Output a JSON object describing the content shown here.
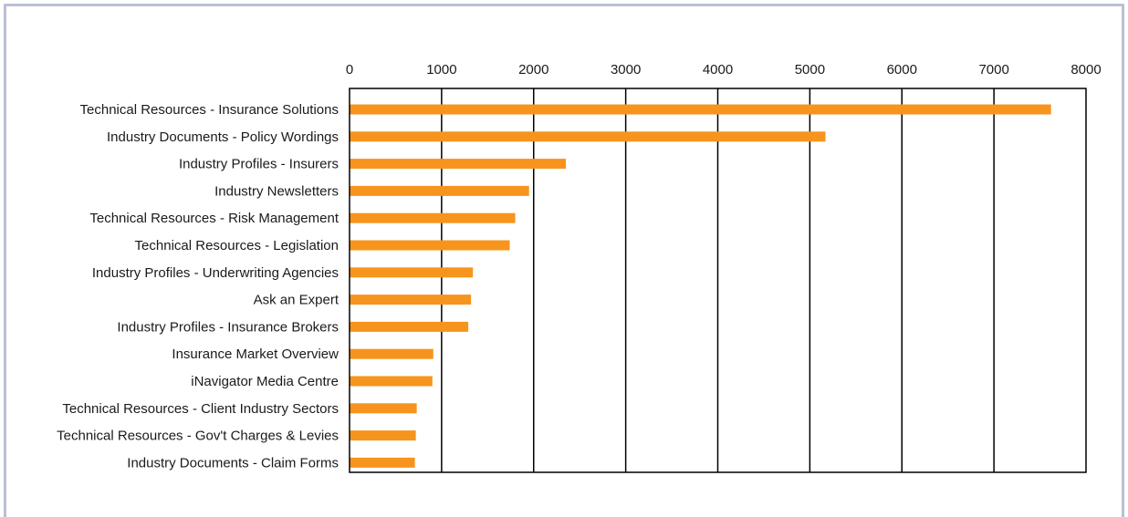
{
  "colors": {
    "bar": "#f7941d",
    "frame": "#b9c1d3",
    "axis": "#000000",
    "text": "#1a1a1a"
  },
  "chart_data": {
    "type": "bar",
    "orientation": "horizontal",
    "title": "",
    "xlabel": "",
    "ylabel": "",
    "xlim": [
      0,
      8000
    ],
    "x_axis_position": "top",
    "xticks": [
      0,
      1000,
      2000,
      3000,
      4000,
      5000,
      6000,
      7000,
      8000
    ],
    "grid": "vertical",
    "legend": "none",
    "categories": [
      "Technical Resources - Insurance Solutions",
      "Industry Documents - Policy Wordings",
      "Industry Profiles - Insurers",
      "Industry Newsletters",
      "Technical Resources - Risk Management",
      "Technical Resources - Legislation",
      "Industry Profiles - Underwriting Agencies",
      "Ask an Expert",
      "Industry Profiles - Insurance Brokers",
      "Insurance Market Overview",
      "iNavigator Media Centre",
      "Technical Resources - Client Industry Sectors",
      "Technical Resources - Gov't Charges & Levies",
      "Industry Documents - Claim Forms"
    ],
    "values": [
      7620,
      5170,
      2350,
      1950,
      1800,
      1740,
      1340,
      1320,
      1290,
      910,
      900,
      730,
      720,
      710
    ]
  }
}
